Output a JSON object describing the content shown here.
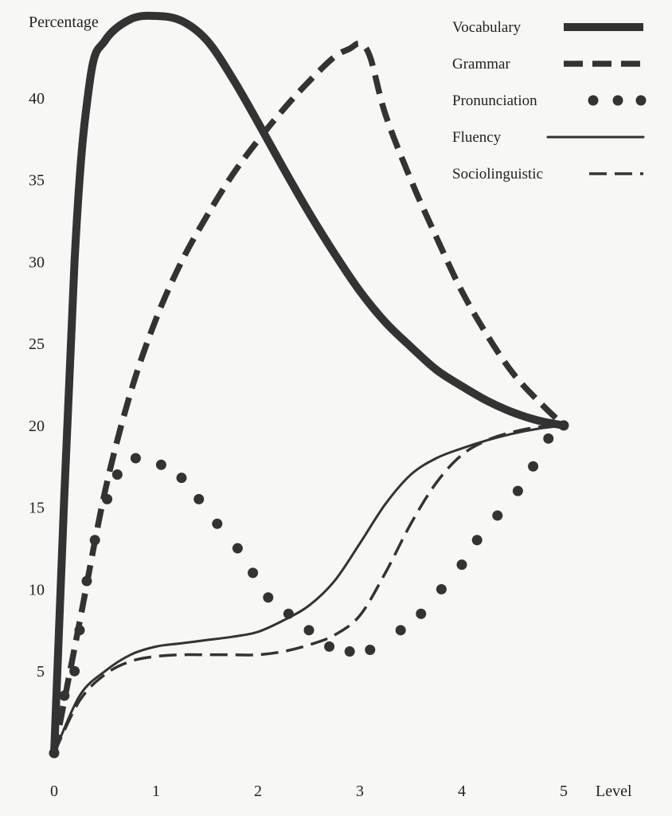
{
  "chart_data": {
    "type": "line",
    "title": "",
    "ylabel": "Percentage",
    "xlabel": "Level",
    "xlim": [
      0,
      5
    ],
    "ylim": [
      0,
      45
    ],
    "x_ticks": [
      0,
      1,
      2,
      3,
      4,
      5
    ],
    "y_ticks": [
      5,
      10,
      15,
      20,
      25,
      30,
      35,
      40
    ],
    "grid": false,
    "legend_position": "top-right",
    "series": [
      {
        "name": "Vocabulary",
        "style": "thick-solid",
        "color": "#333333",
        "x": [
          0,
          0.2,
          0.35,
          0.5,
          0.75,
          1.0,
          1.25,
          1.5,
          1.75,
          2.0,
          2.25,
          2.5,
          2.75,
          3.0,
          3.25,
          3.5,
          3.75,
          4.0,
          4.25,
          4.5,
          4.75,
          5.0
        ],
        "y": [
          0,
          30,
          41,
          43.5,
          44.8,
          45,
          44.7,
          43.5,
          41.2,
          38.5,
          35.7,
          33,
          30.5,
          28.2,
          26.3,
          24.8,
          23.4,
          22.4,
          21.5,
          20.8,
          20.3,
          20
        ]
      },
      {
        "name": "Grammar",
        "style": "thick-dashed",
        "color": "#333333",
        "x": [
          0,
          0.25,
          0.5,
          0.75,
          1.0,
          1.25,
          1.5,
          1.75,
          2.0,
          2.25,
          2.5,
          2.75,
          2.9,
          3.0,
          3.1,
          3.25,
          3.5,
          3.75,
          4.0,
          4.25,
          4.5,
          4.75,
          5.0
        ],
        "y": [
          0,
          8,
          16,
          22,
          26.5,
          30,
          32.8,
          35.3,
          37.4,
          39.3,
          41,
          42.5,
          43,
          43.3,
          42.5,
          39,
          35,
          31.5,
          28.2,
          25.5,
          23.2,
          21.5,
          20
        ]
      },
      {
        "name": "Pronunciation",
        "style": "dotted",
        "color": "#333333",
        "x": [
          0,
          0.1,
          0.2,
          0.25,
          0.32,
          0.4,
          0.52,
          0.62,
          0.8,
          1.05,
          1.25,
          1.42,
          1.6,
          1.8,
          1.95,
          2.1,
          2.3,
          2.5,
          2.7,
          2.9,
          3.1,
          3.4,
          3.6,
          3.8,
          4.0,
          4.15,
          4.35,
          4.55,
          4.7,
          4.85,
          5.0
        ],
        "y": [
          0,
          3.5,
          5,
          7.5,
          10.5,
          13,
          15.5,
          17,
          18,
          17.6,
          16.8,
          15.5,
          14,
          12.5,
          11,
          9.5,
          8.5,
          7.5,
          6.5,
          6.2,
          6.3,
          7.5,
          8.5,
          10,
          11.5,
          13,
          14.5,
          16,
          17.5,
          19.2,
          20
        ]
      },
      {
        "name": "Fluency",
        "style": "thin-solid",
        "color": "#333333",
        "x": [
          0,
          0.25,
          0.5,
          0.75,
          1.0,
          1.25,
          1.5,
          1.75,
          2.0,
          2.25,
          2.5,
          2.75,
          3.0,
          3.25,
          3.5,
          3.75,
          4.0,
          4.25,
          4.5,
          4.75,
          5.0
        ],
        "y": [
          0,
          3.5,
          5,
          6,
          6.5,
          6.7,
          6.9,
          7.1,
          7.4,
          8.1,
          9.0,
          10.5,
          12.8,
          15.2,
          17,
          18,
          18.6,
          19.1,
          19.5,
          19.8,
          20
        ]
      },
      {
        "name": "Sociolinguistic",
        "style": "thin-dashed",
        "color": "#333333",
        "x": [
          0,
          0.25,
          0.5,
          0.75,
          1.0,
          1.25,
          1.5,
          1.75,
          2.0,
          2.25,
          2.5,
          2.75,
          3.0,
          3.25,
          3.5,
          3.75,
          4.0,
          4.25,
          4.5,
          4.75,
          5.0
        ],
        "y": [
          0,
          3.2,
          4.8,
          5.6,
          5.9,
          6,
          6,
          6,
          6,
          6.2,
          6.6,
          7.2,
          8.4,
          11,
          14,
          16.5,
          18.2,
          19.1,
          19.6,
          19.9,
          20
        ]
      }
    ]
  }
}
